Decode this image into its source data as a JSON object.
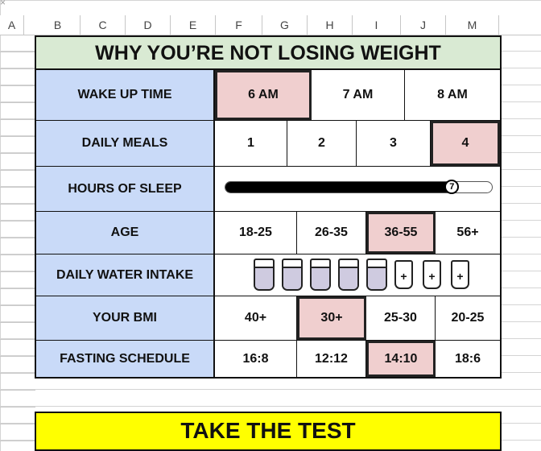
{
  "sheet": {
    "columns": [
      "A",
      "B",
      "C",
      "D",
      "E",
      "F",
      "G",
      "H",
      "I",
      "J",
      "M"
    ]
  },
  "title": "WHY YOU’RE NOT LOSING WEIGHT",
  "rows": {
    "wake_up": {
      "label": "WAKE UP TIME",
      "options": [
        "6 AM",
        "7 AM",
        "8 AM"
      ],
      "selected": "6 AM"
    },
    "meals": {
      "label": "DAILY MEALS",
      "options": [
        "1",
        "2",
        "3",
        "4"
      ],
      "selected": "4"
    },
    "sleep": {
      "label": "HOURS OF SLEEP",
      "value": "7",
      "fraction": 0.85
    },
    "age": {
      "label": "AGE",
      "options": [
        "18-25",
        "26-35",
        "36-55",
        "56+"
      ],
      "selected": "36-55"
    },
    "water": {
      "label": "DAILY WATER INTAKE",
      "filled_cups": 5,
      "empty_cups": 3,
      "add_symbol": "+"
    },
    "bmi": {
      "label": "YOUR BMI",
      "options": [
        "40+",
        "30+",
        "25-30",
        "20-25"
      ],
      "selected": "30+"
    },
    "fasting": {
      "label": "FASTING SCHEDULE",
      "options": [
        "16:8",
        "12:12",
        "14:10",
        "18:6"
      ],
      "selected": "14:10"
    }
  },
  "cta": {
    "label": "TAKE THE TEST"
  },
  "colors": {
    "title_bg": "#d9ead3",
    "label_bg": "#c9daf8",
    "selected_bg": "#f0cfcf",
    "cta_bg": "#ffff00"
  }
}
